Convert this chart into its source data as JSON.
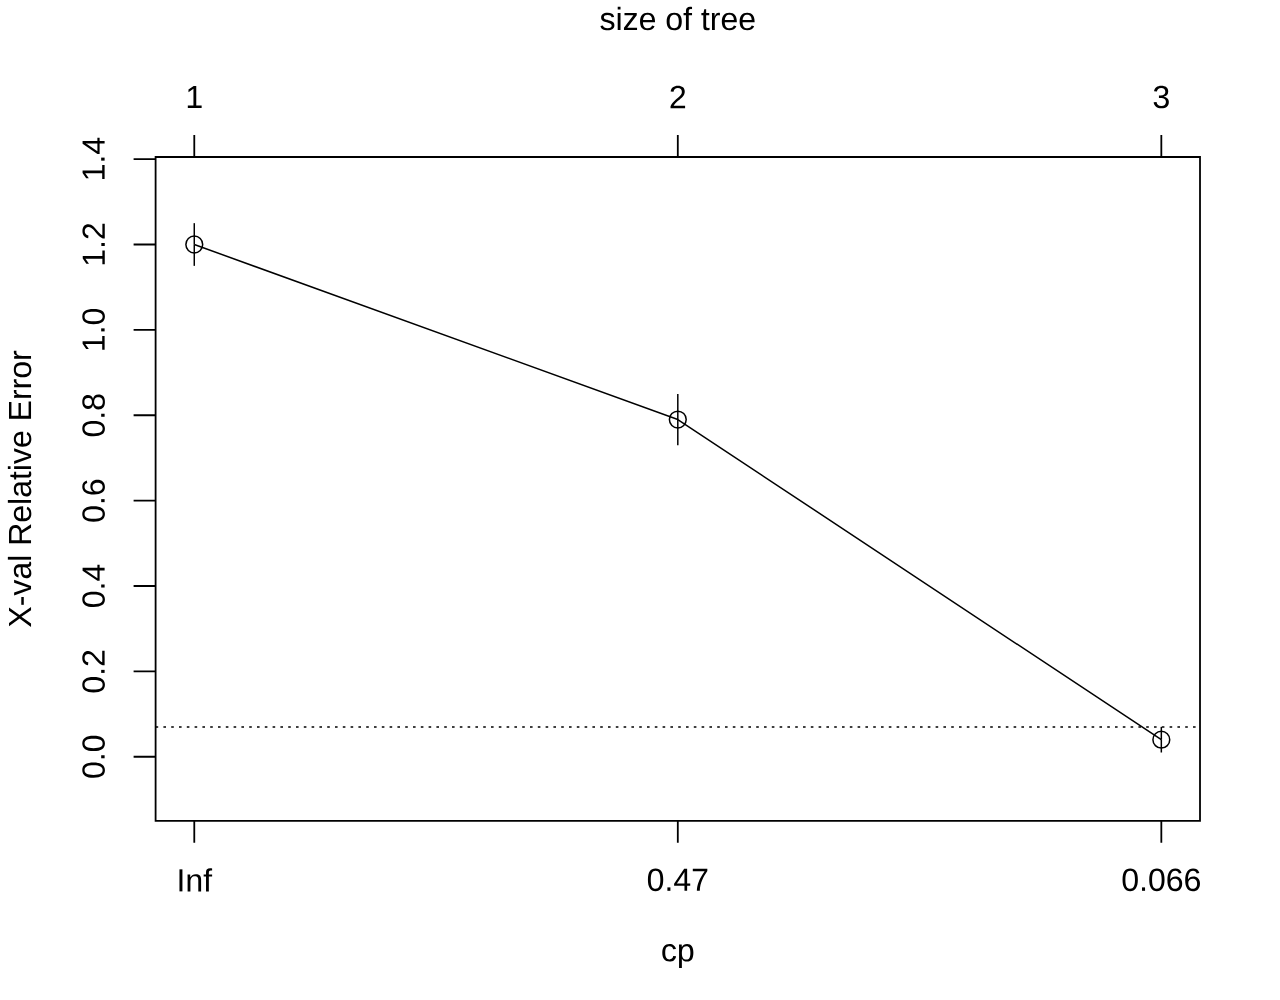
{
  "chart_data": {
    "type": "line",
    "xlabel": "cp",
    "ylabel": "X-val Relative Error",
    "x2label": "size of tree",
    "categories": [
      "Inf",
      "0.47",
      "0.066"
    ],
    "values": [
      1.2,
      0.79,
      0.04
    ],
    "errors": [
      0.05,
      0.06,
      0.03
    ],
    "color": "#000000",
    "marker": "circle",
    "line_style": "solid",
    "x2lim": [
      0.92,
      3.08
    ],
    "x2ticks": [
      1,
      2,
      3
    ],
    "ylim": [
      -0.15,
      1.405
    ],
    "yticks": [
      {
        "value": 0,
        "label": "0.0"
      },
      0.2,
      0.4,
      0.6,
      0.8,
      {
        "value": 1,
        "label": "1.0"
      },
      1.2,
      1.4
    ],
    "ref_lines": [
      {
        "axis": "y",
        "value": 0.07,
        "color": "#000000",
        "line_style": "dotted"
      }
    ]
  }
}
